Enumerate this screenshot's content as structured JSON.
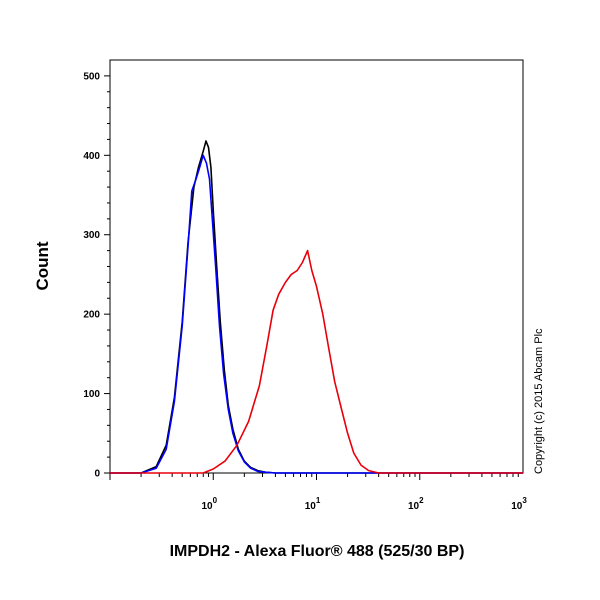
{
  "chart_data": {
    "type": "line",
    "title": "",
    "xlabel": "IMPDH2 - Alexa Fluor® 488 (525/30 BP)",
    "ylabel": "Count",
    "x_scale": "log",
    "xlim": [
      0.1,
      1000
    ],
    "ylim": [
      0,
      520
    ],
    "x_ticks": [
      {
        "value": 1,
        "base": "10",
        "exp": "0"
      },
      {
        "value": 10,
        "base": "10",
        "exp": "1"
      },
      {
        "value": 100,
        "base": "10",
        "exp": "2"
      },
      {
        "value": 1000,
        "base": "10",
        "exp": "3"
      }
    ],
    "y_ticks": [
      0,
      100,
      200,
      300,
      400,
      500
    ],
    "legend": "none",
    "grid": false,
    "series": [
      {
        "color": "#000000",
        "x": [
          0.1,
          0.2,
          0.28,
          0.35,
          0.42,
          0.5,
          0.57,
          0.65,
          0.72,
          0.8,
          0.85,
          0.9,
          0.95,
          1.0,
          1.08,
          1.17,
          1.28,
          1.4,
          1.55,
          1.75,
          2.0,
          2.3,
          2.7,
          3.2,
          4.0,
          1000
        ],
        "y": [
          0,
          0,
          8,
          35,
          95,
          190,
          290,
          360,
          385,
          405,
          418,
          410,
          385,
          330,
          260,
          190,
          130,
          85,
          55,
          30,
          15,
          7,
          3,
          1,
          0,
          0
        ]
      },
      {
        "color": "#0000ff",
        "x": [
          0.1,
          0.2,
          0.28,
          0.35,
          0.42,
          0.5,
          0.57,
          0.62,
          0.68,
          0.74,
          0.8,
          0.86,
          0.92,
          0.98,
          1.06,
          1.15,
          1.26,
          1.4,
          1.55,
          1.75,
          2.0,
          2.3,
          2.7,
          3.2,
          4.0,
          1000
        ],
        "y": [
          0,
          0,
          6,
          30,
          90,
          185,
          285,
          355,
          370,
          385,
          400,
          390,
          370,
          320,
          255,
          185,
          125,
          80,
          50,
          28,
          14,
          6,
          2,
          1,
          0,
          0
        ]
      },
      {
        "color": "#e8000b",
        "x": [
          0.1,
          0.8,
          1.0,
          1.3,
          1.7,
          2.2,
          2.8,
          3.3,
          3.8,
          4.3,
          5.0,
          5.7,
          6.5,
          7.3,
          8.2,
          9.0,
          10.0,
          11.5,
          13.0,
          15.0,
          17.5,
          20.0,
          23.0,
          27.0,
          32.0,
          40.0,
          1000
        ],
        "y": [
          0,
          0,
          5,
          15,
          35,
          65,
          110,
          160,
          205,
          225,
          240,
          250,
          255,
          265,
          280,
          255,
          235,
          200,
          160,
          115,
          80,
          50,
          25,
          10,
          3,
          0,
          0
        ]
      }
    ]
  },
  "copyright": "Copyright (c) 2015 Abcam Plc"
}
